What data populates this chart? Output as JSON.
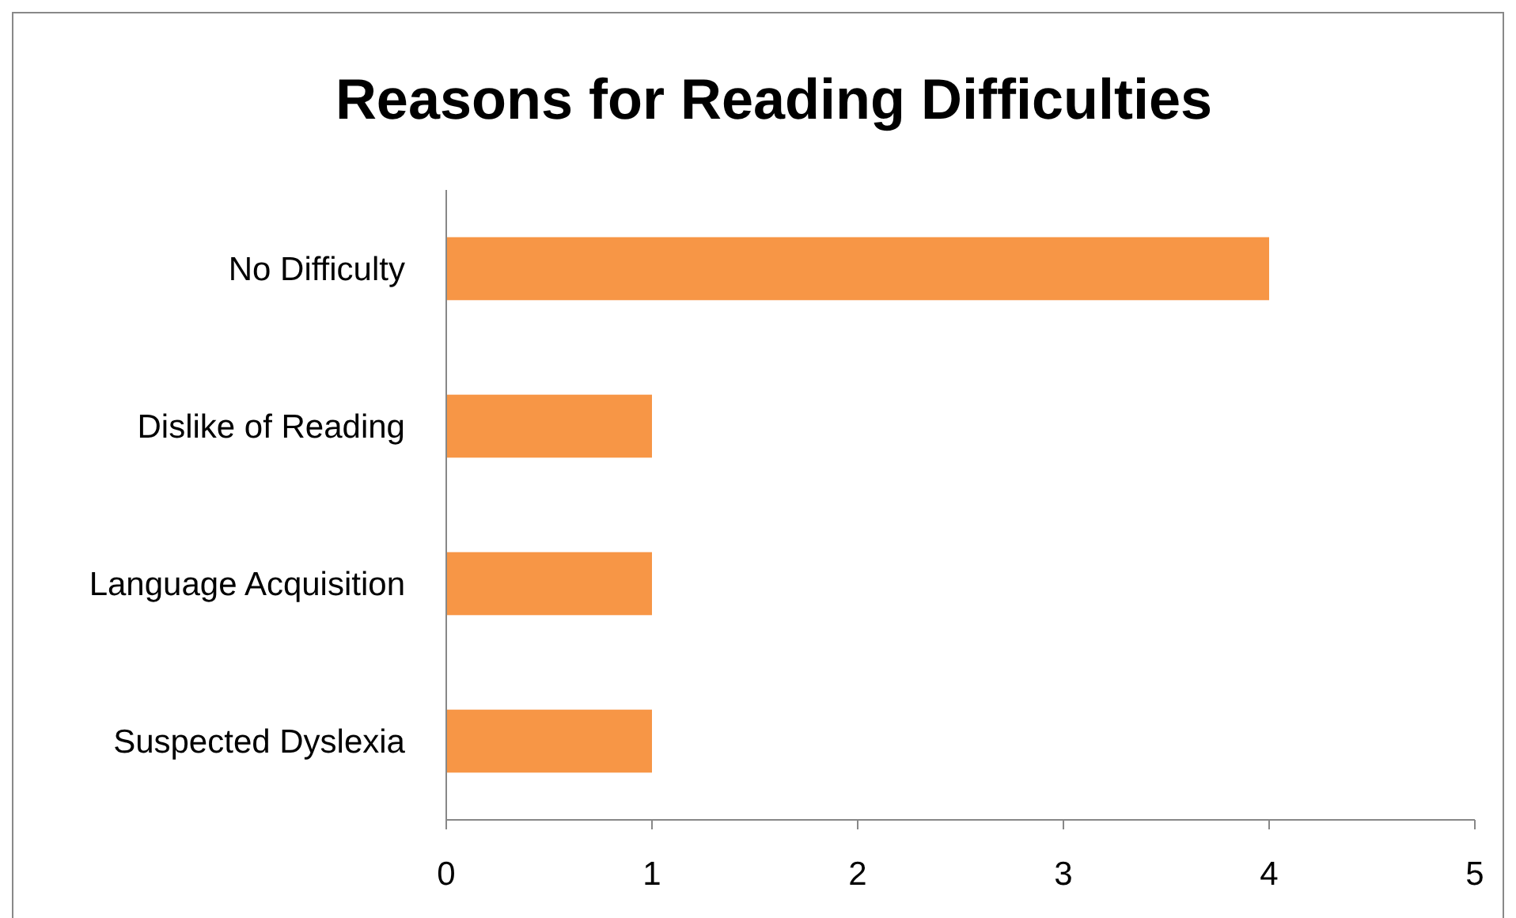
{
  "chart_data": {
    "type": "bar",
    "orientation": "horizontal",
    "title": "Reasons for Reading Difficulties",
    "categories": [
      "No Difficulty",
      "Dislike of Reading",
      "Language Acquisition",
      "Suspected Dyslexia"
    ],
    "values": [
      4,
      1,
      1,
      1
    ],
    "color": "#f79646",
    "xlim": [
      0,
      5
    ],
    "xticks": [
      0,
      1,
      2,
      3,
      4,
      5
    ]
  }
}
